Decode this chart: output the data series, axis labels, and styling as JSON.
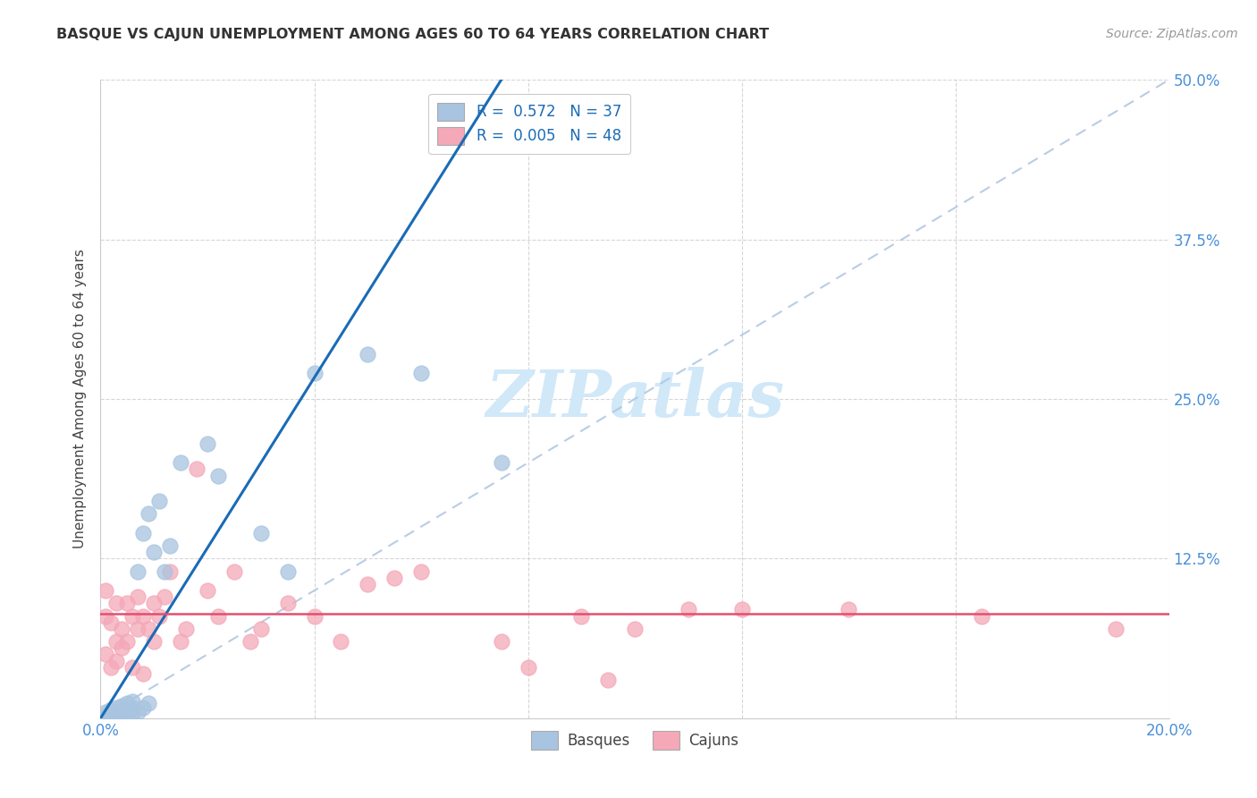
{
  "title": "BASQUE VS CAJUN UNEMPLOYMENT AMONG AGES 60 TO 64 YEARS CORRELATION CHART",
  "source": "Source: ZipAtlas.com",
  "ylabel": "Unemployment Among Ages 60 to 64 years",
  "xlim": [
    0.0,
    0.2
  ],
  "ylim": [
    0.0,
    0.5
  ],
  "xticks": [
    0.0,
    0.04,
    0.08,
    0.12,
    0.16,
    0.2
  ],
  "yticks": [
    0.0,
    0.125,
    0.25,
    0.375,
    0.5
  ],
  "xticklabels_show": [
    "0.0%",
    "20.0%"
  ],
  "yticklabels_show": [
    "12.5%",
    "25.0%",
    "37.5%",
    "50.0%"
  ],
  "legend_labels": [
    "Basques",
    "Cajuns"
  ],
  "r_basque": 0.572,
  "n_basque": 37,
  "r_cajun": 0.005,
  "n_cajun": 48,
  "basque_color": "#a8c4e0",
  "cajun_color": "#f4a8b8",
  "trendline_basque_color": "#1a6bb5",
  "trendline_cajun_color": "#e05070",
  "diagonal_color": "#b0c8e0",
  "background_color": "#ffffff",
  "grid_color": "#cccccc",
  "watermark_color": "#d0e8f8",
  "basque_x": [
    0.001,
    0.001,
    0.001,
    0.002,
    0.002,
    0.002,
    0.003,
    0.003,
    0.003,
    0.004,
    0.004,
    0.004,
    0.005,
    0.005,
    0.005,
    0.006,
    0.006,
    0.006,
    0.007,
    0.007,
    0.008,
    0.008,
    0.009,
    0.009,
    0.01,
    0.011,
    0.012,
    0.013,
    0.015,
    0.02,
    0.022,
    0.03,
    0.035,
    0.04,
    0.05,
    0.06,
    0.075
  ],
  "basque_y": [
    0.0,
    0.002,
    0.005,
    0.0,
    0.003,
    0.007,
    0.001,
    0.004,
    0.008,
    0.002,
    0.005,
    0.01,
    0.003,
    0.007,
    0.012,
    0.004,
    0.008,
    0.013,
    0.005,
    0.115,
    0.008,
    0.145,
    0.012,
    0.16,
    0.13,
    0.17,
    0.115,
    0.135,
    0.2,
    0.215,
    0.19,
    0.145,
    0.115,
    0.27,
    0.285,
    0.27,
    0.2
  ],
  "cajun_x": [
    0.001,
    0.001,
    0.001,
    0.002,
    0.002,
    0.003,
    0.003,
    0.003,
    0.004,
    0.004,
    0.005,
    0.005,
    0.006,
    0.006,
    0.007,
    0.007,
    0.008,
    0.008,
    0.009,
    0.01,
    0.01,
    0.011,
    0.012,
    0.013,
    0.015,
    0.016,
    0.018,
    0.02,
    0.022,
    0.025,
    0.028,
    0.03,
    0.035,
    0.04,
    0.045,
    0.05,
    0.055,
    0.06,
    0.075,
    0.08,
    0.09,
    0.095,
    0.1,
    0.11,
    0.12,
    0.14,
    0.165,
    0.19
  ],
  "cajun_y": [
    0.05,
    0.08,
    0.1,
    0.04,
    0.075,
    0.06,
    0.09,
    0.045,
    0.07,
    0.055,
    0.06,
    0.09,
    0.08,
    0.04,
    0.095,
    0.07,
    0.08,
    0.035,
    0.07,
    0.06,
    0.09,
    0.08,
    0.095,
    0.115,
    0.06,
    0.07,
    0.195,
    0.1,
    0.08,
    0.115,
    0.06,
    0.07,
    0.09,
    0.08,
    0.06,
    0.105,
    0.11,
    0.115,
    0.06,
    0.04,
    0.08,
    0.03,
    0.07,
    0.085,
    0.085,
    0.085,
    0.08,
    0.07
  ],
  "cajun_trendline_y": 0.082,
  "basque_trendline_x0": 0.0,
  "basque_trendline_y0": 0.0,
  "basque_trendline_x1": 0.075,
  "basque_trendline_y1": 0.5
}
